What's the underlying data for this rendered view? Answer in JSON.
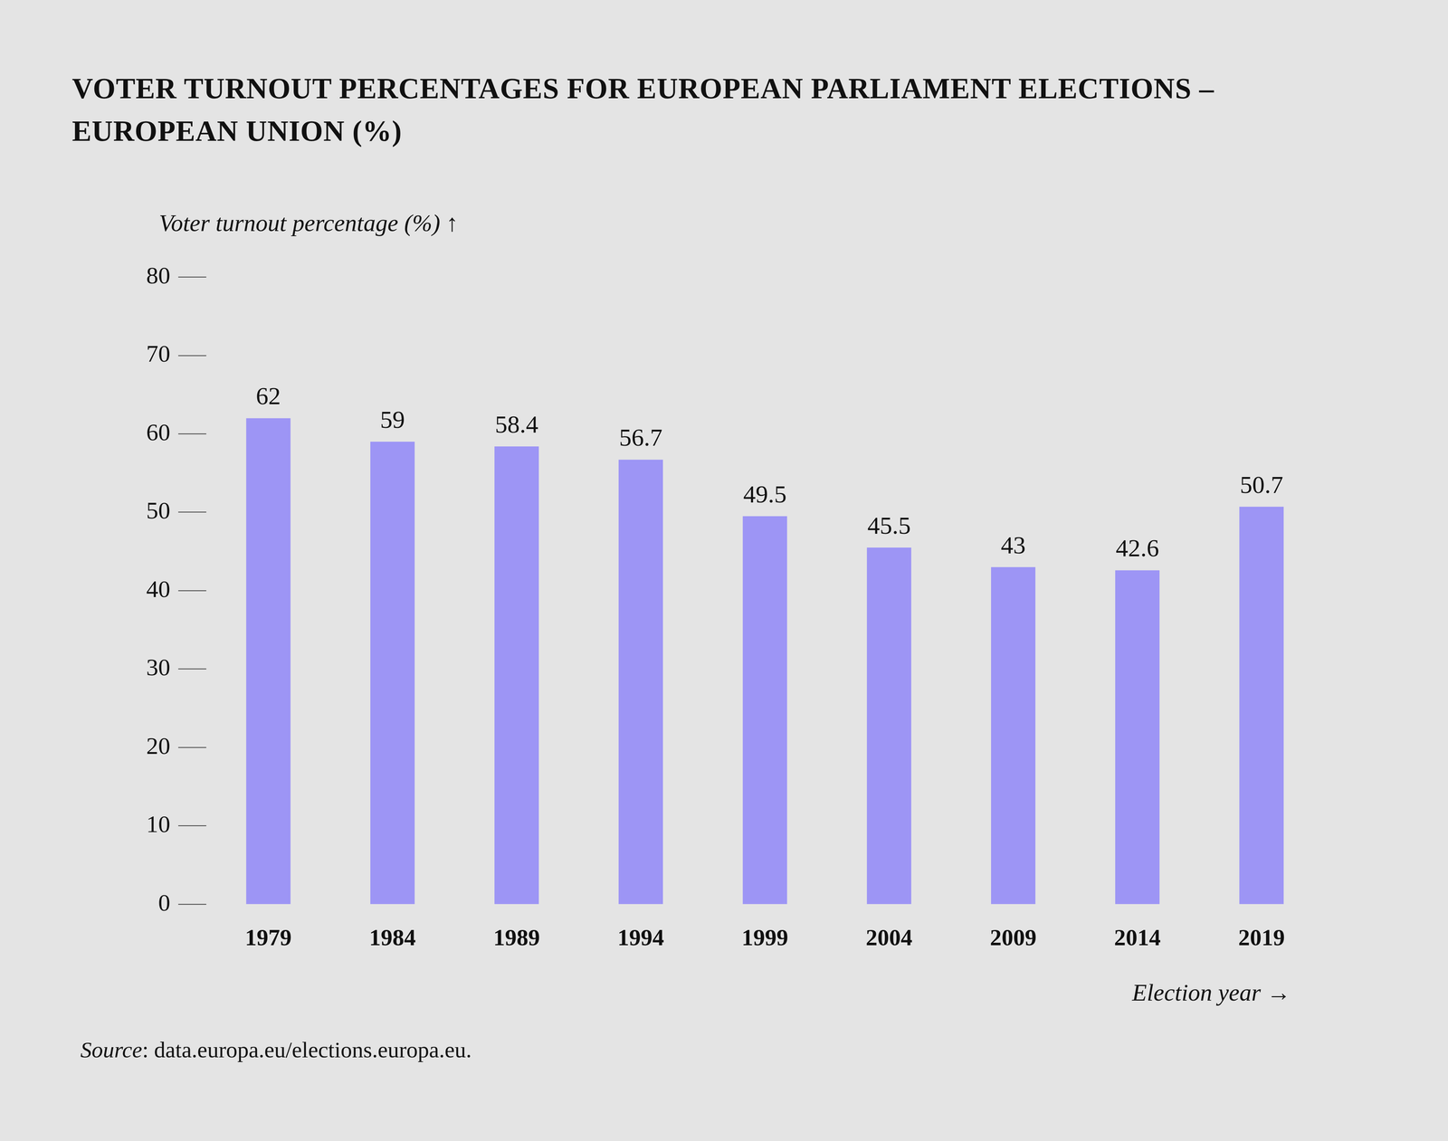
{
  "chart_data": {
    "type": "bar",
    "title": [
      "VOTER TURNOUT PERCENTAGES FOR EUROPEAN PARLIAMENT ELECTIONS –",
      "EUROPEAN UNION (%)"
    ],
    "y_label": "Voter turnout percentage (%) ↑",
    "x_label": "Election year →",
    "source": "Source: data.europa.eu/elections.europa.eu.",
    "categories": [
      "1979",
      "1984",
      "1989",
      "1994",
      "1999",
      "2004",
      "2009",
      "2014",
      "2019"
    ],
    "values": [
      62,
      59,
      58.4,
      56.7,
      49.5,
      45.5,
      43,
      42.6,
      50.7
    ],
    "color": "#9d95f5",
    "ylim": [
      0,
      80
    ],
    "yticks": [
      0,
      10,
      20,
      30,
      40,
      50,
      60,
      70,
      80
    ],
    "grid": false,
    "data_labels": true
  }
}
